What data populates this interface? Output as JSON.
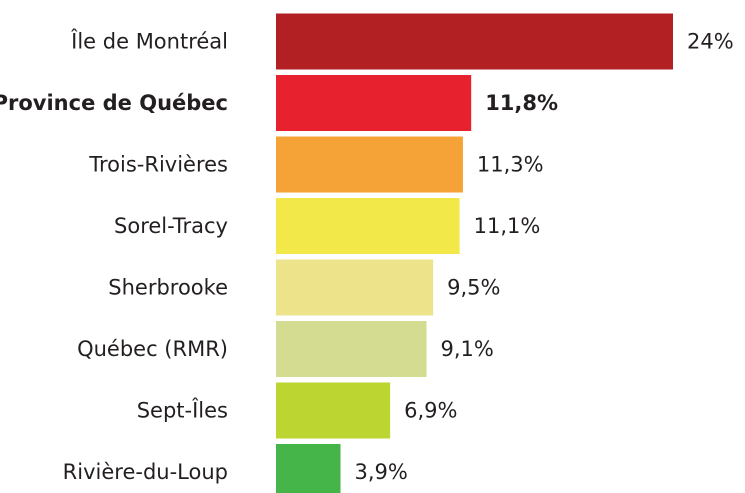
{
  "chart_data": {
    "type": "bar",
    "orientation": "horizontal",
    "categories": [
      "Île de Montréal",
      "Province de Québec",
      "Trois-Rivières",
      "Sorel-Tracy",
      "Sherbrooke",
      "Québec (RMR)",
      "Sept-Îles",
      "Rivière-du-Loup"
    ],
    "values": [
      24,
      11.8,
      11.3,
      11.1,
      9.5,
      9.1,
      6.9,
      3.9
    ],
    "value_labels": [
      "24%",
      "11,8%",
      "11,3%",
      "11,1%",
      "9,5%",
      "9,1%",
      "6,9%",
      "3,9%"
    ],
    "colors": [
      "#b22024",
      "#e8212f",
      "#f5a236",
      "#f3e84a",
      "#ede38a",
      "#d3dc90",
      "#bdd531",
      "#45b549"
    ],
    "bold": [
      false,
      true,
      false,
      false,
      false,
      false,
      false,
      false
    ],
    "xlim": [
      0,
      24
    ]
  }
}
